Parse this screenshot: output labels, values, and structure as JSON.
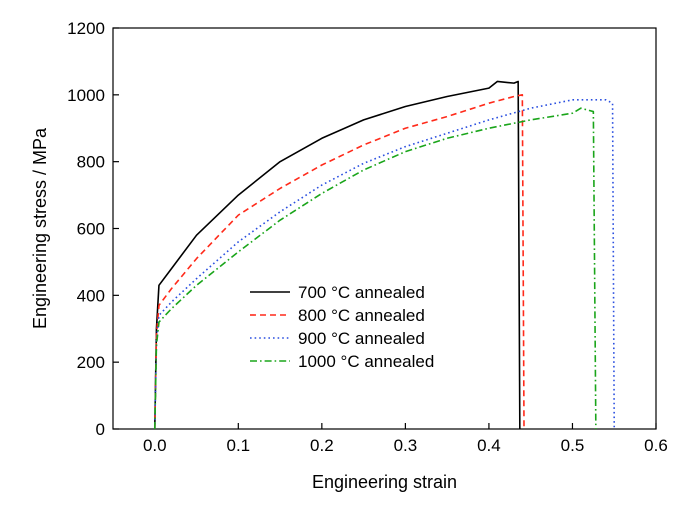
{
  "chart_data": {
    "type": "line",
    "title": "",
    "xlabel": "Engineering strain",
    "ylabel": "Engineering stress / MPa",
    "xlim": [
      -0.05,
      0.6
    ],
    "ylim": [
      0,
      1200
    ],
    "xticks": [
      "0.0",
      "0.1",
      "0.2",
      "0.3",
      "0.4",
      "0.5",
      "0.6"
    ],
    "xtick_values": [
      0.0,
      0.1,
      0.2,
      0.3,
      0.4,
      0.5,
      0.6
    ],
    "yticks": [
      "0",
      "200",
      "400",
      "600",
      "800",
      "1000",
      "1200"
    ],
    "ytick_values": [
      0,
      200,
      400,
      600,
      800,
      1000,
      1200
    ],
    "grid": false,
    "legend_position": "center-left",
    "series": [
      {
        "name": "700 °C annealed",
        "label_temp": "700",
        "color": "#000000",
        "dash": "solid",
        "x": [
          0.0,
          0.002,
          0.005,
          0.02,
          0.05,
          0.1,
          0.15,
          0.2,
          0.25,
          0.3,
          0.35,
          0.4,
          0.41,
          0.43,
          0.435,
          0.437
        ],
        "y": [
          0,
          300,
          430,
          480,
          580,
          700,
          800,
          870,
          925,
          965,
          995,
          1020,
          1040,
          1035,
          1040,
          0
        ]
      },
      {
        "name": "800 °C annealed",
        "label_temp": "800",
        "color": "#ff2a1a",
        "dash": "dashed",
        "x": [
          0.0,
          0.002,
          0.005,
          0.02,
          0.05,
          0.1,
          0.15,
          0.2,
          0.25,
          0.3,
          0.35,
          0.4,
          0.43,
          0.44,
          0.442
        ],
        "y": [
          0,
          280,
          370,
          420,
          510,
          640,
          720,
          790,
          850,
          900,
          935,
          975,
          995,
          1000,
          0
        ]
      },
      {
        "name": "900 °C annealed",
        "label_temp": "900",
        "color": "#2a4fe0",
        "dash": "dotted",
        "x": [
          0.0,
          0.002,
          0.005,
          0.02,
          0.05,
          0.1,
          0.15,
          0.2,
          0.25,
          0.3,
          0.35,
          0.4,
          0.45,
          0.5,
          0.54,
          0.548,
          0.55
        ],
        "y": [
          0,
          260,
          340,
          380,
          450,
          560,
          650,
          730,
          795,
          845,
          885,
          925,
          960,
          985,
          985,
          975,
          0
        ]
      },
      {
        "name": "1000 °C annealed",
        "label_temp": "1000",
        "color": "#1aa51a",
        "dash": "dashdot",
        "x": [
          0.0,
          0.002,
          0.005,
          0.02,
          0.05,
          0.1,
          0.15,
          0.2,
          0.25,
          0.3,
          0.35,
          0.4,
          0.45,
          0.5,
          0.51,
          0.525,
          0.528
        ],
        "y": [
          0,
          250,
          320,
          360,
          430,
          530,
          625,
          705,
          775,
          830,
          870,
          900,
          925,
          945,
          960,
          950,
          0
        ]
      }
    ]
  }
}
